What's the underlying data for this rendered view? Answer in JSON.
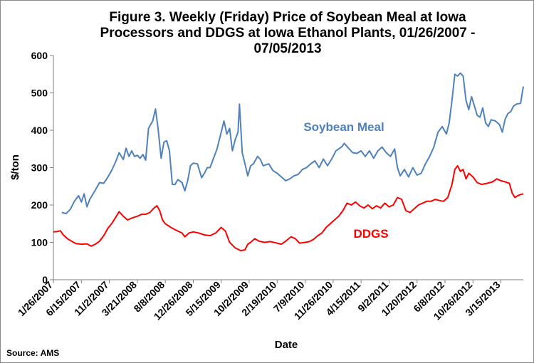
{
  "chart_data": {
    "type": "line",
    "title_lines": [
      "Figure 3. Weekly (Friday) Price of Soybean Meal at Iowa",
      "Processors and DDGS at Iowa Ethanol Plants, 01/26/2007 -",
      "07/05/2013"
    ],
    "xlabel": "Date",
    "ylabel": "$/ton",
    "ylim": [
      0,
      600
    ],
    "yticks": [
      0,
      100,
      200,
      300,
      400,
      500,
      600
    ],
    "xlim": [
      "2007-01-26",
      "2013-07-05"
    ],
    "xtick_labels": [
      "1/26/2007",
      "6/15/2007",
      "11/2/2007",
      "3/21/2008",
      "8/8/2008",
      "12/26/2008",
      "5/15/2009",
      "10/2/2009",
      "2/19/2010",
      "7/9/2010",
      "11/26/2010",
      "4/15/2011",
      "9/2/2011",
      "1/20/2012",
      "6/8/2012",
      "10/26/2012",
      "3/15/2013"
    ],
    "grid": false,
    "legend": "inline labels",
    "source": "Source: AMS",
    "series": [
      {
        "name": "Soybean Meal",
        "color": "#4f81bd",
        "points": [
          [
            "2007-03-09",
            180
          ],
          [
            "2007-03-30",
            177
          ],
          [
            "2007-04-20",
            188
          ],
          [
            "2007-05-11",
            210
          ],
          [
            "2007-06-01",
            225
          ],
          [
            "2007-06-15",
            208
          ],
          [
            "2007-06-29",
            230
          ],
          [
            "2007-07-13",
            195
          ],
          [
            "2007-07-27",
            215
          ],
          [
            "2007-08-24",
            240
          ],
          [
            "2007-09-14",
            260
          ],
          [
            "2007-10-05",
            258
          ],
          [
            "2007-10-26",
            275
          ],
          [
            "2007-11-16",
            295
          ],
          [
            "2007-12-07",
            320
          ],
          [
            "2007-12-21",
            340
          ],
          [
            "2008-01-11",
            322
          ],
          [
            "2008-01-25",
            352
          ],
          [
            "2008-02-08",
            330
          ],
          [
            "2008-02-22",
            345
          ],
          [
            "2008-03-07",
            330
          ],
          [
            "2008-03-21",
            333
          ],
          [
            "2008-04-04",
            325
          ],
          [
            "2008-04-18",
            335
          ],
          [
            "2008-05-02",
            320
          ],
          [
            "2008-05-16",
            405
          ],
          [
            "2008-06-06",
            425
          ],
          [
            "2008-06-20",
            457
          ],
          [
            "2008-07-04",
            400
          ],
          [
            "2008-07-18",
            325
          ],
          [
            "2008-08-01",
            368
          ],
          [
            "2008-08-15",
            372
          ],
          [
            "2008-08-29",
            345
          ],
          [
            "2008-09-12",
            255
          ],
          [
            "2008-09-26",
            255
          ],
          [
            "2008-10-10",
            268
          ],
          [
            "2008-10-31",
            260
          ],
          [
            "2008-11-14",
            238
          ],
          [
            "2008-11-28",
            265
          ],
          [
            "2008-12-12",
            305
          ],
          [
            "2008-12-26",
            312
          ],
          [
            "2009-01-16",
            310
          ],
          [
            "2009-02-06",
            273
          ],
          [
            "2009-02-20",
            285
          ],
          [
            "2009-03-06",
            300
          ],
          [
            "2009-03-20",
            300
          ],
          [
            "2009-04-03",
            320
          ],
          [
            "2009-04-24",
            350
          ],
          [
            "2009-05-15",
            395
          ],
          [
            "2009-05-29",
            425
          ],
          [
            "2009-06-12",
            390
          ],
          [
            "2009-06-26",
            405
          ],
          [
            "2009-07-10",
            345
          ],
          [
            "2009-07-24",
            375
          ],
          [
            "2009-08-07",
            395
          ],
          [
            "2009-08-14",
            470
          ],
          [
            "2009-08-28",
            340
          ],
          [
            "2009-09-11",
            310
          ],
          [
            "2009-09-25",
            278
          ],
          [
            "2009-10-09",
            305
          ],
          [
            "2009-10-23",
            310
          ],
          [
            "2009-11-13",
            330
          ],
          [
            "2009-11-27",
            322
          ],
          [
            "2009-12-11",
            305
          ],
          [
            "2010-01-08",
            310
          ],
          [
            "2010-01-29",
            292
          ],
          [
            "2010-02-19",
            285
          ],
          [
            "2010-03-12",
            275
          ],
          [
            "2010-04-02",
            265
          ],
          [
            "2010-04-23",
            270
          ],
          [
            "2010-05-14",
            278
          ],
          [
            "2010-06-04",
            282
          ],
          [
            "2010-06-25",
            295
          ],
          [
            "2010-07-16",
            300
          ],
          [
            "2010-08-06",
            310
          ],
          [
            "2010-08-27",
            318
          ],
          [
            "2010-09-17",
            300
          ],
          [
            "2010-10-08",
            323
          ],
          [
            "2010-10-29",
            305
          ],
          [
            "2010-11-19",
            323
          ],
          [
            "2010-12-10",
            345
          ],
          [
            "2011-01-07",
            355
          ],
          [
            "2011-01-21",
            365
          ],
          [
            "2011-02-11",
            352
          ],
          [
            "2011-03-04",
            340
          ],
          [
            "2011-03-25",
            338
          ],
          [
            "2011-04-15",
            345
          ],
          [
            "2011-05-06",
            330
          ],
          [
            "2011-05-27",
            345
          ],
          [
            "2011-06-17",
            325
          ],
          [
            "2011-07-08",
            345
          ],
          [
            "2011-07-29",
            355
          ],
          [
            "2011-08-19",
            340
          ],
          [
            "2011-09-09",
            330
          ],
          [
            "2011-09-30",
            350
          ],
          [
            "2011-10-14",
            300
          ],
          [
            "2011-10-28",
            278
          ],
          [
            "2011-11-18",
            295
          ],
          [
            "2011-12-09",
            275
          ],
          [
            "2011-12-30",
            300
          ],
          [
            "2012-01-20",
            280
          ],
          [
            "2012-02-10",
            285
          ],
          [
            "2012-03-02",
            310
          ],
          [
            "2012-03-23",
            330
          ],
          [
            "2012-04-13",
            355
          ],
          [
            "2012-05-04",
            395
          ],
          [
            "2012-05-25",
            410
          ],
          [
            "2012-06-15",
            390
          ],
          [
            "2012-06-29",
            420
          ],
          [
            "2012-07-13",
            480
          ],
          [
            "2012-07-27",
            550
          ],
          [
            "2012-08-10",
            545
          ],
          [
            "2012-08-24",
            553
          ],
          [
            "2012-09-07",
            545
          ],
          [
            "2012-09-21",
            480
          ],
          [
            "2012-10-05",
            455
          ],
          [
            "2012-10-19",
            490
          ],
          [
            "2012-11-02",
            465
          ],
          [
            "2012-11-16",
            440
          ],
          [
            "2012-11-30",
            435
          ],
          [
            "2012-12-14",
            460
          ],
          [
            "2012-12-28",
            420
          ],
          [
            "2013-01-11",
            410
          ],
          [
            "2013-01-25",
            428
          ],
          [
            "2013-02-15",
            425
          ],
          [
            "2013-03-08",
            415
          ],
          [
            "2013-03-22",
            395
          ],
          [
            "2013-04-05",
            430
          ],
          [
            "2013-04-19",
            445
          ],
          [
            "2013-05-03",
            450
          ],
          [
            "2013-05-17",
            465
          ],
          [
            "2013-05-31",
            470
          ],
          [
            "2013-06-21",
            472
          ],
          [
            "2013-07-05",
            517
          ]
        ]
      },
      {
        "name": "DDGS",
        "color": "#ff0000",
        "points": [
          [
            "2007-01-26",
            128
          ],
          [
            "2007-02-16",
            129
          ],
          [
            "2007-03-02",
            131
          ],
          [
            "2007-03-16",
            120
          ],
          [
            "2007-04-06",
            110
          ],
          [
            "2007-04-27",
            103
          ],
          [
            "2007-05-18",
            97
          ],
          [
            "2007-06-15",
            95
          ],
          [
            "2007-07-13",
            96
          ],
          [
            "2007-08-03",
            90
          ],
          [
            "2007-08-24",
            95
          ],
          [
            "2007-09-14",
            103
          ],
          [
            "2007-10-05",
            118
          ],
          [
            "2007-10-26",
            138
          ],
          [
            "2007-11-16",
            152
          ],
          [
            "2007-12-07",
            170
          ],
          [
            "2007-12-21",
            182
          ],
          [
            "2008-01-11",
            170
          ],
          [
            "2008-02-01",
            160
          ],
          [
            "2008-02-22",
            165
          ],
          [
            "2008-03-21",
            170
          ],
          [
            "2008-04-11",
            175
          ],
          [
            "2008-05-02",
            175
          ],
          [
            "2008-05-23",
            180
          ],
          [
            "2008-06-13",
            192
          ],
          [
            "2008-06-27",
            198
          ],
          [
            "2008-07-11",
            185
          ],
          [
            "2008-07-25",
            160
          ],
          [
            "2008-08-08",
            150
          ],
          [
            "2008-09-05",
            140
          ],
          [
            "2008-10-03",
            132
          ],
          [
            "2008-10-31",
            125
          ],
          [
            "2008-11-14",
            115
          ],
          [
            "2008-12-05",
            125
          ],
          [
            "2008-12-26",
            128
          ],
          [
            "2009-01-23",
            125
          ],
          [
            "2009-02-20",
            120
          ],
          [
            "2009-03-20",
            118
          ],
          [
            "2009-04-17",
            125
          ],
          [
            "2009-05-15",
            140
          ],
          [
            "2009-06-05",
            130
          ],
          [
            "2009-06-26",
            100
          ],
          [
            "2009-07-24",
            85
          ],
          [
            "2009-08-21",
            78
          ],
          [
            "2009-09-11",
            80
          ],
          [
            "2009-09-25",
            95
          ],
          [
            "2009-10-09",
            100
          ],
          [
            "2009-10-30",
            110
          ],
          [
            "2009-11-20",
            103
          ],
          [
            "2009-12-18",
            100
          ],
          [
            "2010-01-15",
            102
          ],
          [
            "2010-02-19",
            98
          ],
          [
            "2010-03-12",
            95
          ],
          [
            "2010-04-02",
            103
          ],
          [
            "2010-04-30",
            115
          ],
          [
            "2010-05-21",
            110
          ],
          [
            "2010-06-11",
            98
          ],
          [
            "2010-07-09",
            100
          ],
          [
            "2010-07-30",
            102
          ],
          [
            "2010-08-20",
            108
          ],
          [
            "2010-09-10",
            118
          ],
          [
            "2010-10-01",
            125
          ],
          [
            "2010-10-22",
            140
          ],
          [
            "2010-11-12",
            150
          ],
          [
            "2010-12-03",
            160
          ],
          [
            "2010-12-24",
            170
          ],
          [
            "2011-01-14",
            185
          ],
          [
            "2011-02-04",
            205
          ],
          [
            "2011-02-25",
            200
          ],
          [
            "2011-03-18",
            208
          ],
          [
            "2011-04-08",
            198
          ],
          [
            "2011-04-29",
            192
          ],
          [
            "2011-05-20",
            200
          ],
          [
            "2011-06-10",
            190
          ],
          [
            "2011-07-01",
            198
          ],
          [
            "2011-07-22",
            192
          ],
          [
            "2011-08-12",
            205
          ],
          [
            "2011-09-02",
            195
          ],
          [
            "2011-09-23",
            200
          ],
          [
            "2011-10-14",
            220
          ],
          [
            "2011-11-04",
            215
          ],
          [
            "2011-11-25",
            185
          ],
          [
            "2011-12-16",
            180
          ],
          [
            "2012-01-06",
            190
          ],
          [
            "2012-01-27",
            200
          ],
          [
            "2012-02-17",
            205
          ],
          [
            "2012-03-09",
            210
          ],
          [
            "2012-03-30",
            210
          ],
          [
            "2012-04-20",
            215
          ],
          [
            "2012-05-11",
            212
          ],
          [
            "2012-06-01",
            210
          ],
          [
            "2012-06-22",
            220
          ],
          [
            "2012-07-13",
            255
          ],
          [
            "2012-07-27",
            295
          ],
          [
            "2012-08-10",
            305
          ],
          [
            "2012-08-24",
            290
          ],
          [
            "2012-09-07",
            295
          ],
          [
            "2012-09-21",
            270
          ],
          [
            "2012-10-05",
            285
          ],
          [
            "2012-10-26",
            275
          ],
          [
            "2012-11-16",
            260
          ],
          [
            "2012-12-07",
            255
          ],
          [
            "2013-01-04",
            258
          ],
          [
            "2013-02-01",
            262
          ],
          [
            "2013-02-22",
            270
          ],
          [
            "2013-03-15",
            265
          ],
          [
            "2013-04-05",
            262
          ],
          [
            "2013-04-26",
            258
          ],
          [
            "2013-05-10",
            232
          ],
          [
            "2013-05-24",
            220
          ],
          [
            "2013-06-07",
            225
          ],
          [
            "2013-06-21",
            228
          ],
          [
            "2013-07-05",
            230
          ]
        ]
      }
    ]
  }
}
